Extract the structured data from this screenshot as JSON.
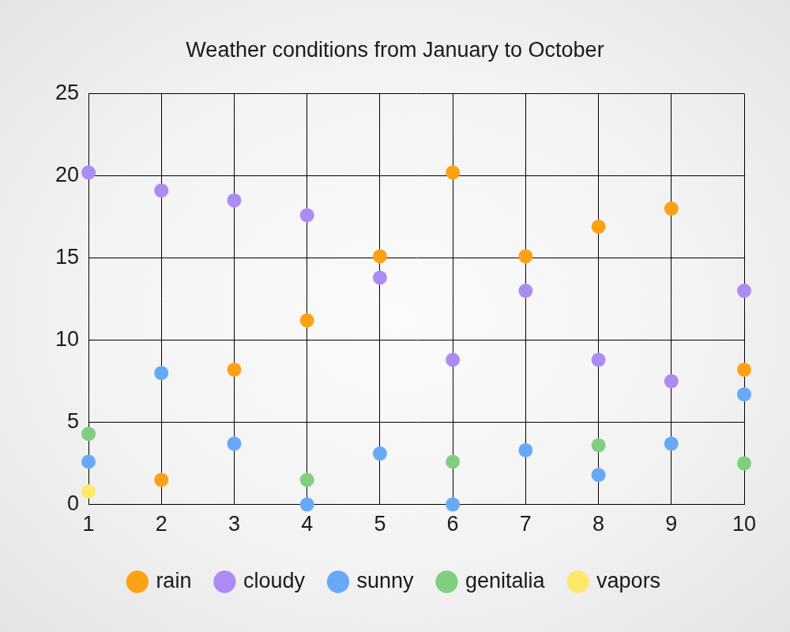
{
  "chart_data": {
    "type": "scatter",
    "title": "Weather conditions from January to October",
    "x": [
      1,
      2,
      3,
      4,
      5,
      6,
      7,
      8,
      9,
      10
    ],
    "series": [
      {
        "name": "rain",
        "color": "#ffa114",
        "values": [
          null,
          1.5,
          8.2,
          11.2,
          15.1,
          20.2,
          15.1,
          16.9,
          18.0,
          8.2
        ]
      },
      {
        "name": "cloudy",
        "color": "#aa8cf2",
        "values": [
          20.2,
          19.1,
          18.5,
          17.6,
          13.8,
          8.8,
          13.0,
          8.8,
          7.5,
          13.0
        ]
      },
      {
        "name": "sunny",
        "color": "#67a9f7",
        "values": [
          2.6,
          8.0,
          3.7,
          0,
          3.1,
          0,
          3.3,
          1.8,
          3.7,
          6.7
        ]
      },
      {
        "name": "genitalia",
        "color": "#80cf80",
        "values": [
          4.3,
          null,
          null,
          1.5,
          null,
          2.6,
          null,
          3.6,
          null,
          2.5
        ]
      },
      {
        "name": "vapors",
        "color": "#fce96a",
        "values": [
          0.8,
          null,
          null,
          null,
          null,
          null,
          null,
          null,
          null,
          null
        ]
      }
    ],
    "xlim": [
      1,
      10
    ],
    "xticks": [
      1,
      2,
      3,
      4,
      5,
      6,
      7,
      8,
      9,
      10
    ],
    "ylim": [
      0,
      25
    ],
    "yticks": [
      0,
      5,
      10,
      15,
      20,
      25
    ],
    "grid": true,
    "legend": "bottom",
    "marker": "circle"
  }
}
